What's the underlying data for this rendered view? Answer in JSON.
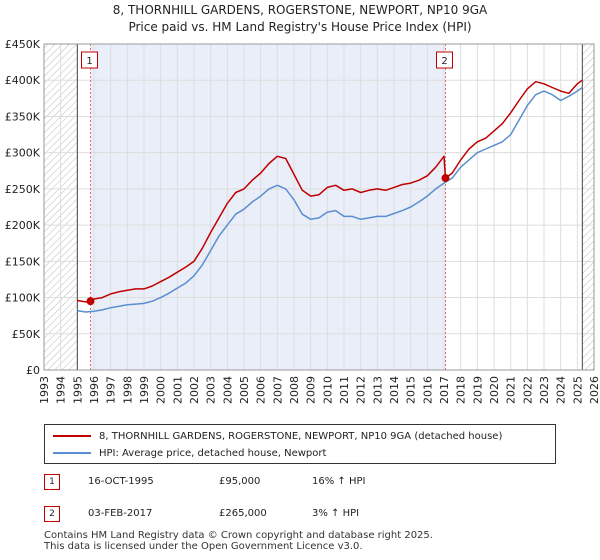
{
  "title": {
    "line1": "8, THORNHILL GARDENS, ROGERSTONE, NEWPORT, NP10 9GA",
    "line2": "Price paid vs. HM Land Registry's House Price Index (HPI)"
  },
  "legend": {
    "series1": "8, THORNHILL GARDENS, ROGERSTONE, NEWPORT, NP10 9GA (detached house)",
    "series2": "HPI: Average price, detached house, Newport"
  },
  "transactions": [
    {
      "num": "1",
      "date": "16-OCT-1995",
      "price": "£95,000",
      "hpi": "16% ↑ HPI"
    },
    {
      "num": "2",
      "date": "03-FEB-2017",
      "price": "£265,000",
      "hpi": "3% ↑ HPI"
    }
  ],
  "footer": {
    "line1": "Contains HM Land Registry data © Crown copyright and database right 2025.",
    "line2": "This data is licensed under the Open Government Licence v3.0."
  },
  "colors": {
    "property": "#c00000",
    "hpi": "#5b8ed0",
    "grid": "#dddddd",
    "hatch": "#bbbbbb",
    "highlight": "#e9eef8",
    "marker_line": "#e07070"
  },
  "chart_data": {
    "type": "line",
    "title": "Price paid vs. HM Land Registry's House Price Index (HPI)",
    "xlabel": "",
    "ylabel": "",
    "xlim": [
      1993,
      2026
    ],
    "ylim": [
      0,
      450000
    ],
    "x_ticks": [
      "1993",
      "1994",
      "1995",
      "1996",
      "1997",
      "1998",
      "1999",
      "2000",
      "2001",
      "2002",
      "2003",
      "2004",
      "2005",
      "2006",
      "2007",
      "2008",
      "2009",
      "2010",
      "2011",
      "2012",
      "2013",
      "2014",
      "2015",
      "2016",
      "2017",
      "2018",
      "2019",
      "2020",
      "2021",
      "2022",
      "2023",
      "2024",
      "2025",
      "2026"
    ],
    "y_ticks": [
      {
        "value": 0,
        "label": "£0"
      },
      {
        "value": 50000,
        "label": "£50K"
      },
      {
        "value": 100000,
        "label": "£100K"
      },
      {
        "value": 150000,
        "label": "£150K"
      },
      {
        "value": 200000,
        "label": "£200K"
      },
      {
        "value": 250000,
        "label": "£250K"
      },
      {
        "value": 300000,
        "label": "£300K"
      },
      {
        "value": 350000,
        "label": "£350K"
      },
      {
        "value": 400000,
        "label": "£400K"
      },
      {
        "value": 450000,
        "label": "£450K"
      }
    ],
    "data_range": [
      1995.0,
      2025.3
    ],
    "sales": [
      {
        "label": "1",
        "x": 1995.79,
        "y": 95000
      },
      {
        "label": "2",
        "x": 2017.09,
        "y": 265000
      }
    ],
    "series": [
      {
        "name": "8, THORNHILL GARDENS, ROGERSTONE, NEWPORT, NP10 9GA (detached house)",
        "x": [
          1995.0,
          1995.5,
          1995.79,
          1996.0,
          1996.5,
          1997.0,
          1997.5,
          1998.0,
          1998.5,
          1999.0,
          1999.5,
          2000.0,
          2000.5,
          2001.0,
          2001.5,
          2002.0,
          2002.5,
          2003.0,
          2003.5,
          2004.0,
          2004.5,
          2005.0,
          2005.5,
          2006.0,
          2006.5,
          2007.0,
          2007.5,
          2008.0,
          2008.5,
          2009.0,
          2009.5,
          2010.0,
          2010.5,
          2011.0,
          2011.5,
          2012.0,
          2012.5,
          2013.0,
          2013.5,
          2014.0,
          2014.5,
          2015.0,
          2015.5,
          2016.0,
          2016.5,
          2017.0,
          2017.09,
          2017.5,
          2018.0,
          2018.5,
          2019.0,
          2019.5,
          2020.0,
          2020.5,
          2021.0,
          2021.5,
          2022.0,
          2022.5,
          2023.0,
          2023.5,
          2024.0,
          2024.5,
          2025.0,
          2025.3
        ],
        "y": [
          96000,
          94000,
          95000,
          98000,
          100000,
          105000,
          108000,
          110000,
          112000,
          112000,
          116000,
          122000,
          128000,
          135000,
          142000,
          150000,
          168000,
          190000,
          210000,
          230000,
          245000,
          250000,
          262000,
          272000,
          285000,
          295000,
          292000,
          270000,
          248000,
          240000,
          242000,
          252000,
          255000,
          248000,
          250000,
          245000,
          248000,
          250000,
          248000,
          252000,
          256000,
          258000,
          262000,
          268000,
          280000,
          295000,
          265000,
          272000,
          290000,
          305000,
          315000,
          320000,
          330000,
          340000,
          355000,
          372000,
          388000,
          398000,
          395000,
          390000,
          385000,
          382000,
          395000,
          400000
        ]
      },
      {
        "name": "HPI: Average price, detached house, Newport",
        "x": [
          1995.0,
          1995.5,
          1996.0,
          1996.5,
          1997.0,
          1997.5,
          1998.0,
          1998.5,
          1999.0,
          1999.5,
          2000.0,
          2000.5,
          2001.0,
          2001.5,
          2002.0,
          2002.5,
          2003.0,
          2003.5,
          2004.0,
          2004.5,
          2005.0,
          2005.5,
          2006.0,
          2006.5,
          2007.0,
          2007.5,
          2008.0,
          2008.5,
          2009.0,
          2009.5,
          2010.0,
          2010.5,
          2011.0,
          2011.5,
          2012.0,
          2012.5,
          2013.0,
          2013.5,
          2014.0,
          2014.5,
          2015.0,
          2015.5,
          2016.0,
          2016.5,
          2017.0,
          2017.5,
          2018.0,
          2018.5,
          2019.0,
          2019.5,
          2020.0,
          2020.5,
          2021.0,
          2021.5,
          2022.0,
          2022.5,
          2023.0,
          2023.5,
          2024.0,
          2024.5,
          2025.0,
          2025.3
        ],
        "y": [
          82000,
          80000,
          81000,
          83000,
          86000,
          88000,
          90000,
          91000,
          92000,
          95000,
          100000,
          106000,
          113000,
          120000,
          130000,
          145000,
          165000,
          185000,
          200000,
          215000,
          222000,
          232000,
          240000,
          250000,
          255000,
          250000,
          235000,
          215000,
          208000,
          210000,
          218000,
          220000,
          212000,
          212000,
          208000,
          210000,
          212000,
          212000,
          216000,
          220000,
          225000,
          232000,
          240000,
          250000,
          258000,
          265000,
          280000,
          290000,
          300000,
          305000,
          310000,
          315000,
          325000,
          345000,
          365000,
          380000,
          385000,
          380000,
          372000,
          378000,
          385000,
          390000
        ]
      }
    ]
  }
}
